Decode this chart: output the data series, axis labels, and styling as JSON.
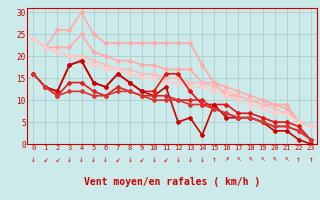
{
  "xlabel": "Vent moyen/en rafales ( km/h )",
  "xlim": [
    -0.5,
    23.5
  ],
  "ylim": [
    0,
    31
  ],
  "yticks": [
    0,
    5,
    10,
    15,
    20,
    25,
    30
  ],
  "xticks": [
    0,
    1,
    2,
    3,
    4,
    5,
    6,
    7,
    8,
    9,
    10,
    11,
    12,
    13,
    14,
    15,
    16,
    17,
    18,
    19,
    20,
    21,
    22,
    23
  ],
  "background_color": "#cceaea",
  "grid_color": "#aacece",
  "lines": [
    {
      "x": [
        0,
        1,
        2,
        3,
        4,
        5,
        6,
        7,
        8,
        9,
        10,
        11,
        12,
        13,
        14,
        15,
        16,
        17,
        18,
        19,
        20,
        21,
        22,
        23
      ],
      "y": [
        24,
        22,
        26,
        26,
        30,
        25,
        23,
        23,
        23,
        23,
        23,
        23,
        23,
        23,
        18,
        14,
        11,
        11,
        10,
        9,
        9,
        9,
        5,
        4
      ],
      "color": "#ffaaaa",
      "lw": 1.2,
      "marker": "s",
      "ms": 2.0
    },
    {
      "x": [
        0,
        1,
        2,
        3,
        4,
        5,
        6,
        7,
        8,
        9,
        10,
        11,
        12,
        13,
        14,
        15,
        16,
        17,
        18,
        19,
        20,
        21,
        22,
        23
      ],
      "y": [
        24,
        22,
        22,
        22,
        25,
        21,
        20,
        19,
        19,
        18,
        18,
        17,
        17,
        17,
        14,
        14,
        13,
        12,
        11,
        10,
        9,
        8,
        5,
        4
      ],
      "color": "#ffaaaa",
      "lw": 1.2,
      "marker": "s",
      "ms": 2.0
    },
    {
      "x": [
        0,
        1,
        2,
        3,
        4,
        5,
        6,
        7,
        8,
        9,
        10,
        11,
        12,
        13,
        14,
        15,
        16,
        17,
        18,
        19,
        20,
        21,
        22,
        23
      ],
      "y": [
        24,
        22,
        21,
        20,
        20,
        19,
        18,
        17,
        17,
        16,
        16,
        15,
        15,
        14,
        14,
        13,
        12,
        11,
        10,
        9,
        8,
        7,
        5,
        4
      ],
      "color": "#ffbbbb",
      "lw": 1.2,
      "marker": "s",
      "ms": 2.0
    },
    {
      "x": [
        0,
        1,
        2,
        3,
        4,
        5,
        6,
        7,
        8,
        9,
        10,
        11,
        12,
        13,
        14,
        15,
        16,
        17,
        18,
        19,
        20,
        21,
        22,
        23
      ],
      "y": [
        24,
        22,
        21,
        20,
        19,
        18,
        17,
        17,
        16,
        15,
        15,
        14,
        14,
        13,
        13,
        12,
        11,
        10,
        9,
        8,
        7,
        7,
        5,
        4
      ],
      "color": "#ffcccc",
      "lw": 1.2,
      "marker": "s",
      "ms": 2.0
    },
    {
      "x": [
        0,
        1,
        2,
        3,
        4,
        5,
        6,
        7,
        8,
        9,
        10,
        11,
        12,
        13,
        14,
        15,
        16,
        17,
        18,
        19,
        20,
        21,
        22,
        23
      ],
      "y": [
        16,
        13,
        12,
        18,
        19,
        14,
        13,
        16,
        14,
        12,
        12,
        16,
        16,
        12,
        9,
        9,
        9,
        7,
        7,
        6,
        5,
        5,
        4,
        1
      ],
      "color": "#ee1111",
      "lw": 1.2,
      "marker": "s",
      "ms": 2.0
    },
    {
      "x": [
        0,
        1,
        2,
        3,
        4,
        5,
        6,
        7,
        8,
        9,
        10,
        11,
        12,
        13,
        14,
        15,
        16,
        17,
        18,
        19,
        20,
        21,
        22,
        23
      ],
      "y": [
        16,
        13,
        12,
        18,
        19,
        14,
        13,
        16,
        14,
        12,
        11,
        13,
        5,
        6,
        2,
        9,
        6,
        6,
        6,
        5,
        3,
        3,
        1,
        0
      ],
      "color": "#cc0000",
      "lw": 1.2,
      "marker": "s",
      "ms": 2.0
    },
    {
      "x": [
        0,
        1,
        2,
        3,
        4,
        5,
        6,
        7,
        8,
        9,
        10,
        11,
        12,
        13,
        14,
        15,
        16,
        17,
        18,
        19,
        20,
        21,
        22,
        23
      ],
      "y": [
        16,
        13,
        11,
        14,
        14,
        12,
        11,
        13,
        12,
        11,
        11,
        11,
        10,
        10,
        10,
        8,
        7,
        6,
        6,
        5,
        4,
        4,
        3,
        1
      ],
      "color": "#dd2222",
      "lw": 1.2,
      "marker": "s",
      "ms": 2.0
    },
    {
      "x": [
        0,
        1,
        2,
        3,
        4,
        5,
        6,
        7,
        8,
        9,
        10,
        11,
        12,
        13,
        14,
        15,
        16,
        17,
        18,
        19,
        20,
        21,
        22,
        23
      ],
      "y": [
        16,
        13,
        11,
        12,
        12,
        11,
        11,
        12,
        12,
        11,
        10,
        10,
        10,
        9,
        9,
        8,
        7,
        6,
        6,
        5,
        4,
        4,
        3,
        1
      ],
      "color": "#dd3333",
      "lw": 1.2,
      "marker": "s",
      "ms": 2.0
    }
  ],
  "wind_arrows": [
    "↓",
    "↙",
    "↙",
    "↓",
    "↓",
    "↓",
    "↓",
    "↙",
    "↓",
    "↙",
    "↓",
    "↙",
    "↓",
    "↓",
    "↓",
    "↑",
    "↗",
    "↖",
    "↖",
    "↖",
    "↖",
    "↖",
    "↑",
    "↑"
  ]
}
